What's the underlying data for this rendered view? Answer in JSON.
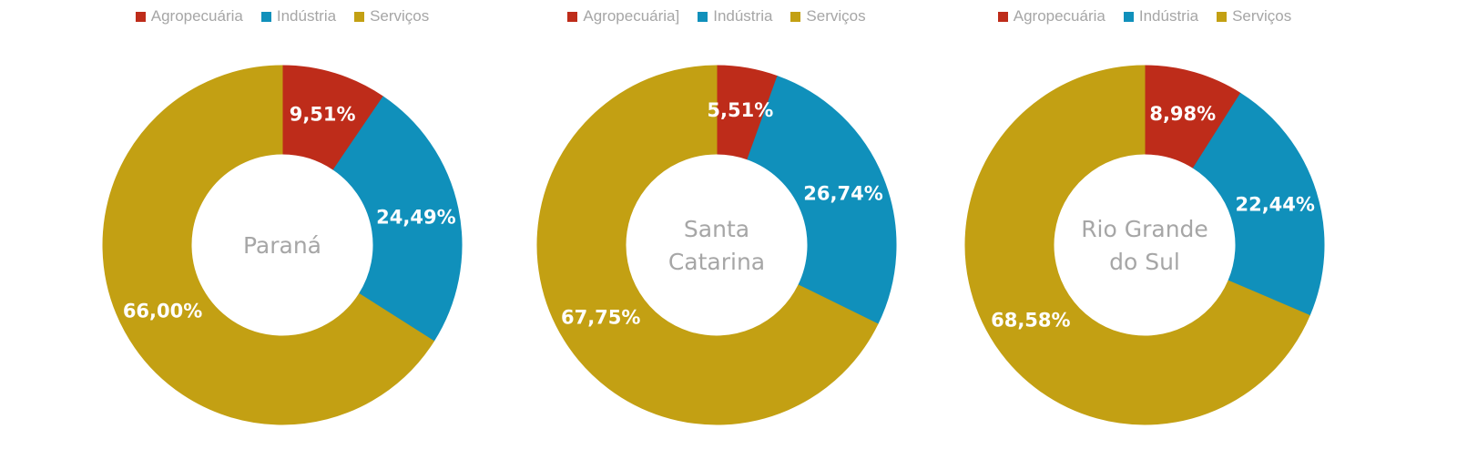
{
  "colors": {
    "agropecuaria": "#be2c1a",
    "industria": "#1090bb",
    "servicos": "#c3a013"
  },
  "chart_data": [
    {
      "type": "pie",
      "title": "Paraná",
      "title_lines": [
        "Paraná"
      ],
      "legend": [
        "Agropecuária",
        "Indústria",
        "Serviços"
      ],
      "legend_placement": "top",
      "categories": [
        "Agropecuária",
        "Indústria",
        "Serviços"
      ],
      "values": [
        9.51,
        24.49,
        66.0
      ],
      "labels": [
        "9,51%",
        "24,49%",
        "66,00%"
      ]
    },
    {
      "type": "pie",
      "title": "Santa Catarina",
      "title_lines": [
        "Santa",
        "Catarina"
      ],
      "legend": [
        "Agropecuária]",
        "Indústria",
        "Serviços"
      ],
      "legend_placement": "top",
      "categories": [
        "Agropecuária",
        "Indústria",
        "Serviços"
      ],
      "values": [
        5.51,
        26.74,
        67.75
      ],
      "labels": [
        "5,51%",
        "26,74%",
        "67,75%"
      ]
    },
    {
      "type": "pie",
      "title": "Rio Grande do Sul",
      "title_lines": [
        "Rio Grande",
        "do Sul"
      ],
      "legend": [
        "Agropecuária",
        "Indústria",
        "Serviços"
      ],
      "legend_placement": "top",
      "categories": [
        "Agropecuária",
        "Indústria",
        "Serviços"
      ],
      "values": [
        8.98,
        22.44,
        68.58
      ],
      "labels": [
        "8,98%",
        "22,44%",
        "68,58%"
      ]
    }
  ]
}
